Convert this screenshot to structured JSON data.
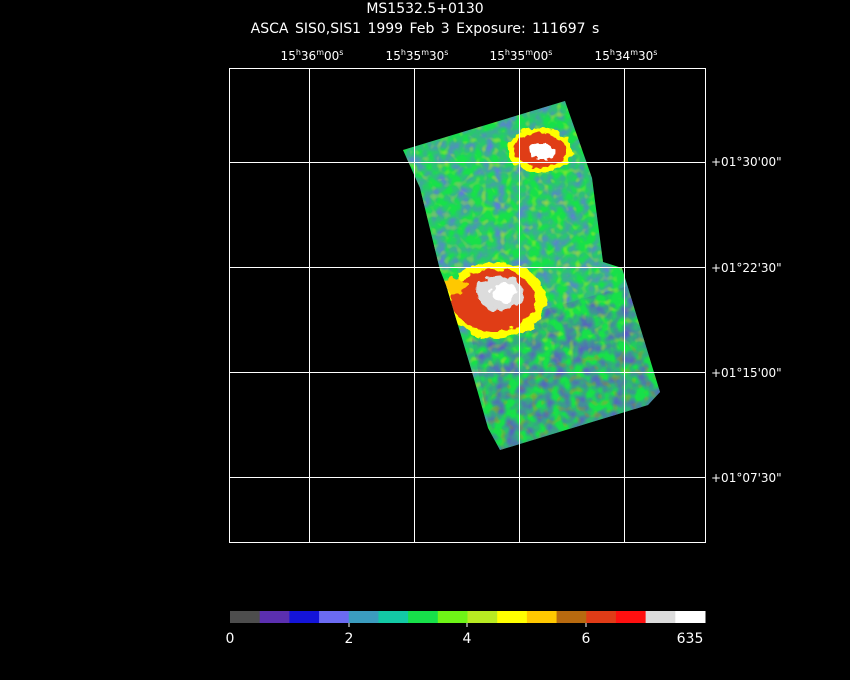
{
  "header": {
    "title": "MS1532.5+0130",
    "subtitle": "ASCA SIS0,SIS1   1999 Feb  3    Exposure: 111697 s"
  },
  "ra_ticks": [
    {
      "h": "15",
      "m": "36",
      "s": "00"
    },
    {
      "h": "15",
      "m": "35",
      "s": "30"
    },
    {
      "h": "15",
      "m": "35",
      "s": "00"
    },
    {
      "h": "15",
      "m": "34",
      "s": "30"
    }
  ],
  "dec_ticks": [
    "+01°30'00\"",
    "+01°22'30\"",
    "+01°15'00\"",
    "+01°07'30\""
  ],
  "colorbar": {
    "colors": [
      "#4d4d4d",
      "#5b2fb0",
      "#1414d8",
      "#6b6bf2",
      "#3b9cbf",
      "#13c9a5",
      "#17e04a",
      "#6ff417",
      "#b8ea22",
      "#ffff00",
      "#ffc800",
      "#b86a0f",
      "#e03c17",
      "#ff1010",
      "#dcdcdc",
      "#ffffff"
    ],
    "labels": [
      "0",
      "2",
      "4",
      "6",
      "635"
    ]
  }
}
